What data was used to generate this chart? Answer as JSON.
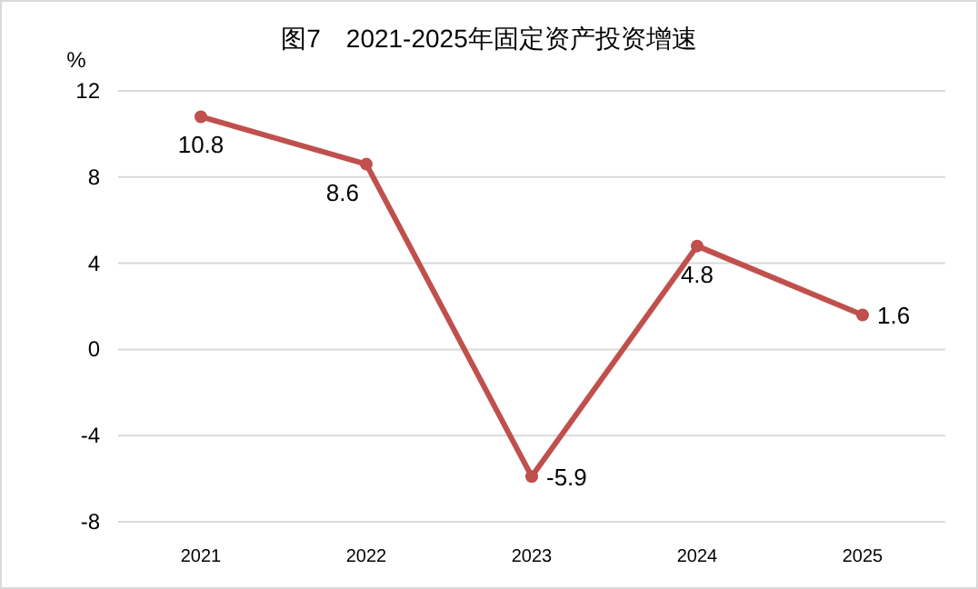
{
  "chart_data": {
    "type": "line",
    "title": "图7　2021-2025年固定资产投资增速",
    "ylabel": "%",
    "categories": [
      "2021",
      "2022",
      "2023",
      "2024",
      "2025"
    ],
    "series": [
      {
        "color": "#c0504d",
        "values": [
          10.8,
          8.6,
          -5.9,
          4.8,
          1.6
        ]
      }
    ],
    "ylim": [
      -8,
      12
    ],
    "yticks": [
      -8,
      -4,
      0,
      4,
      8,
      12
    ],
    "grid": "y",
    "marker": "circle",
    "line_style": "solid",
    "data_labels": true
  }
}
